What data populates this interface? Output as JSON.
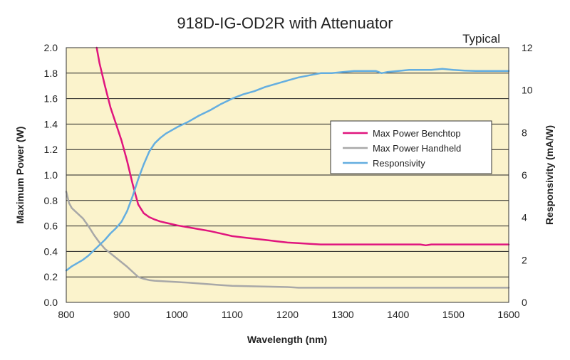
{
  "chart_data": {
    "type": "line",
    "title": "918D-IG-OD2R with Attenuator",
    "note": "Typical",
    "xlabel": "Wavelength (nm)",
    "ylabel_left": "Maximum Power (W)",
    "ylabel_right": "Responsivity  (mA/W)",
    "xlim": [
      800,
      1600
    ],
    "ylim_left": [
      0,
      2.0
    ],
    "ylim_right": [
      0,
      12
    ],
    "x_ticks": [
      "800",
      "900",
      "1000",
      "1100",
      "1200",
      "1300",
      "1400",
      "1500",
      "1600"
    ],
    "y_left_ticks": [
      "0.0",
      "0.2",
      "0.4",
      "0.6",
      "0.8",
      "1.0",
      "1.2",
      "1.4",
      "1.6",
      "1.8",
      "2.0"
    ],
    "y_right_ticks": [
      "0",
      "2",
      "4",
      "6",
      "8",
      "10",
      "12"
    ],
    "grid": "horizontal",
    "legend_position": "right-center",
    "colors": {
      "plot_background": "#fbf3cc",
      "benchtop": "#e0157e",
      "handheld": "#a8a8a8",
      "responsivity": "#64aee0"
    },
    "series": [
      {
        "name": "Max Power Benchtop",
        "axis": "left",
        "color": "#e0157e",
        "x": [
          855,
          860,
          870,
          880,
          890,
          900,
          910,
          920,
          930,
          940,
          950,
          960,
          970,
          980,
          990,
          1000,
          1020,
          1040,
          1060,
          1080,
          1100,
          1120,
          1140,
          1160,
          1180,
          1200,
          1220,
          1240,
          1260,
          1300,
          1350,
          1400,
          1440,
          1450,
          1460,
          1500,
          1550,
          1600
        ],
        "y": [
          2.0,
          1.88,
          1.7,
          1.53,
          1.4,
          1.27,
          1.11,
          0.93,
          0.77,
          0.7,
          0.67,
          0.65,
          0.635,
          0.625,
          0.615,
          0.605,
          0.59,
          0.575,
          0.56,
          0.54,
          0.52,
          0.51,
          0.5,
          0.49,
          0.48,
          0.47,
          0.465,
          0.46,
          0.455,
          0.455,
          0.455,
          0.455,
          0.455,
          0.448,
          0.455,
          0.455,
          0.455,
          0.455
        ]
      },
      {
        "name": "Max Power Handheld",
        "axis": "left",
        "color": "#a8a8a8",
        "x": [
          800,
          805,
          810,
          820,
          830,
          840,
          850,
          860,
          870,
          880,
          890,
          900,
          910,
          920,
          930,
          940,
          950,
          960,
          980,
          1000,
          1020,
          1050,
          1080,
          1100,
          1150,
          1200,
          1220,
          1300,
          1400,
          1500,
          1600
        ],
        "y": [
          0.87,
          0.78,
          0.74,
          0.7,
          0.66,
          0.6,
          0.53,
          0.47,
          0.42,
          0.385,
          0.35,
          0.315,
          0.28,
          0.24,
          0.2,
          0.185,
          0.175,
          0.17,
          0.165,
          0.16,
          0.155,
          0.145,
          0.135,
          0.13,
          0.125,
          0.12,
          0.115,
          0.115,
          0.115,
          0.115,
          0.115
        ]
      },
      {
        "name": "Responsivity",
        "axis": "right",
        "color": "#64aee0",
        "x": [
          800,
          810,
          820,
          830,
          840,
          850,
          860,
          870,
          880,
          890,
          900,
          910,
          920,
          930,
          940,
          950,
          960,
          970,
          980,
          1000,
          1020,
          1040,
          1060,
          1080,
          1100,
          1120,
          1140,
          1160,
          1180,
          1200,
          1220,
          1240,
          1260,
          1280,
          1300,
          1320,
          1340,
          1360,
          1370,
          1380,
          1400,
          1420,
          1440,
          1460,
          1480,
          1500,
          1520,
          1540,
          1560,
          1580,
          1600
        ],
        "y": [
          1.5,
          1.7,
          1.85,
          2.0,
          2.2,
          2.45,
          2.7,
          2.95,
          3.25,
          3.5,
          3.8,
          4.3,
          5.0,
          5.8,
          6.5,
          7.1,
          7.5,
          7.75,
          7.95,
          8.25,
          8.5,
          8.8,
          9.05,
          9.35,
          9.6,
          9.8,
          9.95,
          10.15,
          10.3,
          10.45,
          10.6,
          10.7,
          10.8,
          10.8,
          10.85,
          10.9,
          10.9,
          10.9,
          10.8,
          10.85,
          10.9,
          10.95,
          10.95,
          10.95,
          11.0,
          10.95,
          10.92,
          10.9,
          10.9,
          10.9,
          10.9
        ]
      }
    ]
  }
}
